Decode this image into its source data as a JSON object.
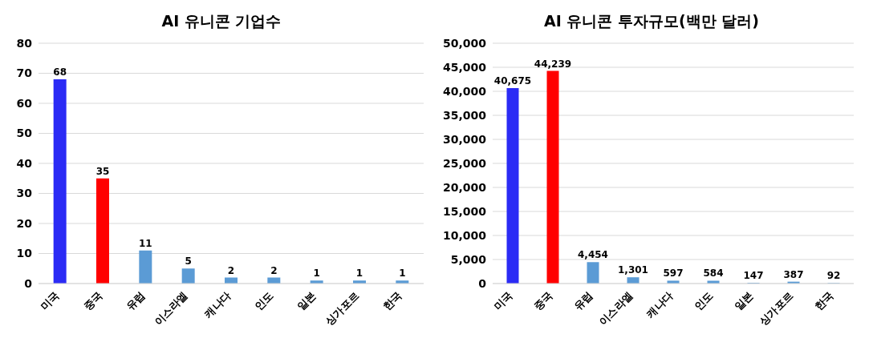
{
  "chart_data": [
    {
      "type": "bar",
      "title": "AI 유니콘 기업수",
      "categories": [
        "미국",
        "중국",
        "유럽",
        "이스라엘",
        "캐나다",
        "인도",
        "일본",
        "싱가포르",
        "한국"
      ],
      "values": [
        68,
        35,
        11,
        5,
        2,
        2,
        1,
        1,
        1
      ],
      "colors": [
        "#2b2bf5",
        "#ff0000",
        "#5b9bd5",
        "#5b9bd5",
        "#5b9bd5",
        "#5b9bd5",
        "#5b9bd5",
        "#5b9bd5",
        "#5b9bd5"
      ],
      "ylim": [
        0,
        80
      ],
      "yticks": [
        0,
        10,
        20,
        30,
        40,
        50,
        60,
        70,
        80
      ],
      "grid": "y",
      "data_labels": true
    },
    {
      "type": "bar",
      "title": "AI 유니콘 투자규모(백만 달러)",
      "categories": [
        "미국",
        "중국",
        "유럽",
        "이스라엘",
        "캐나다",
        "인도",
        "일본",
        "싱가포르",
        "한국"
      ],
      "values": [
        40675,
        44239,
        4454,
        1301,
        597,
        584,
        147,
        387,
        92
      ],
      "value_labels": [
        "40,675",
        "44,239",
        "4,454",
        "1,301",
        "597",
        "584",
        "147",
        "387",
        "92"
      ],
      "colors": [
        "#2b2bf5",
        "#ff0000",
        "#5b9bd5",
        "#5b9bd5",
        "#5b9bd5",
        "#5b9bd5",
        "#5b9bd5",
        "#5b9bd5",
        "#5b9bd5"
      ],
      "ylim": [
        0,
        50000
      ],
      "yticks": [
        0,
        {
          "value": 5000,
          "label": "5,000"
        },
        {
          "value": 10000,
          "label": "10,000"
        },
        {
          "value": 15000,
          "label": "15,000"
        },
        {
          "value": 20000,
          "label": "20,000"
        },
        {
          "value": 25000,
          "label": "25,000"
        },
        {
          "value": 30000,
          "label": "30,000"
        },
        {
          "value": 35000,
          "label": "35,000"
        },
        {
          "value": 40000,
          "label": "40,000"
        },
        {
          "value": 45000,
          "label": "45,000"
        },
        {
          "value": 50000,
          "label": "50,000"
        }
      ],
      "grid": "y"
    }
  ]
}
